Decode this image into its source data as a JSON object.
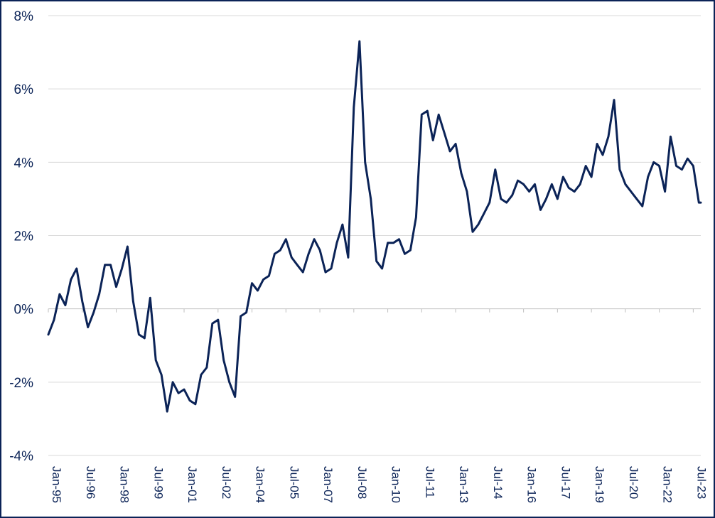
{
  "chart_data": {
    "type": "line",
    "title": "",
    "xlabel": "",
    "ylabel": "",
    "ylim": [
      -4,
      8
    ],
    "y_ticks": [
      "-4%",
      "-2%",
      "0%",
      "2%",
      "4%",
      "6%",
      "8%"
    ],
    "y_tick_values": [
      -4,
      -2,
      0,
      2,
      4,
      6,
      8
    ],
    "x_ticks": [
      "Jan-95",
      "Jul-96",
      "Jan-98",
      "Jul-99",
      "Jan-01",
      "Jul-02",
      "Jan-04",
      "Jul-05",
      "Jan-07",
      "Jul-08",
      "Jan-10",
      "Jul-11",
      "Jan-13",
      "Jul-14",
      "Jan-16",
      "Jul-17",
      "Jan-19",
      "Jul-20",
      "Jan-22",
      "Jul-23"
    ],
    "x_range": [
      "1995-01",
      "2023-11"
    ],
    "grid": "horizontal",
    "legend": "none",
    "colors": {
      "line": "#0b2357",
      "text": "#0b2357",
      "grid": "#d9d9d9"
    },
    "series": [
      {
        "x": [
          "1995-01",
          "1995-04",
          "1995-07",
          "1995-10",
          "1996-01",
          "1996-04",
          "1996-07",
          "1996-10",
          "1997-01",
          "1997-04",
          "1997-07",
          "1997-10",
          "1998-01",
          "1998-04",
          "1998-07",
          "1998-10",
          "1999-01",
          "1999-04",
          "1999-07",
          "1999-10",
          "2000-01",
          "2000-04",
          "2000-07",
          "2000-10",
          "2001-01",
          "2001-04",
          "2001-07",
          "2001-10",
          "2002-01",
          "2002-04",
          "2002-07",
          "2002-10",
          "2003-01",
          "2003-04",
          "2003-07",
          "2003-10",
          "2004-01",
          "2004-04",
          "2004-07",
          "2004-10",
          "2005-01",
          "2005-04",
          "2005-07",
          "2005-10",
          "2006-01",
          "2006-04",
          "2006-07",
          "2006-10",
          "2007-01",
          "2007-04",
          "2007-07",
          "2007-10",
          "2008-01",
          "2008-04",
          "2008-07",
          "2008-10",
          "2009-01",
          "2009-04",
          "2009-07",
          "2009-10",
          "2010-01",
          "2010-04",
          "2010-07",
          "2010-10",
          "2011-01",
          "2011-04",
          "2011-07",
          "2011-10",
          "2012-01",
          "2012-04",
          "2012-07",
          "2012-10",
          "2013-01",
          "2013-04",
          "2013-07",
          "2013-10",
          "2014-01",
          "2014-04",
          "2014-07",
          "2014-10",
          "2015-01",
          "2015-04",
          "2015-07",
          "2015-10",
          "2016-01",
          "2016-04",
          "2016-07",
          "2016-10",
          "2017-01",
          "2017-04",
          "2017-07",
          "2017-10",
          "2018-01",
          "2018-04",
          "2018-07",
          "2018-10",
          "2019-01",
          "2019-04",
          "2019-07",
          "2019-10",
          "2020-01",
          "2020-04",
          "2020-07",
          "2020-10",
          "2021-01",
          "2021-04",
          "2021-07",
          "2021-10",
          "2022-01",
          "2022-04",
          "2022-07",
          "2022-10",
          "2023-01",
          "2023-04",
          "2023-07",
          "2023-10",
          "2023-11"
        ],
        "values": [
          -0.7,
          -0.3,
          0.4,
          0.1,
          0.8,
          1.1,
          0.2,
          -0.5,
          -0.1,
          0.4,
          1.2,
          1.2,
          0.6,
          1.1,
          1.7,
          0.2,
          -0.7,
          -0.8,
          0.3,
          -1.4,
          -1.8,
          -2.8,
          -2.0,
          -2.3,
          -2.2,
          -2.5,
          -2.6,
          -1.8,
          -1.6,
          -0.4,
          -0.3,
          -1.4,
          -2.0,
          -2.4,
          -0.2,
          -0.1,
          0.7,
          0.5,
          0.8,
          0.9,
          1.5,
          1.6,
          1.9,
          1.4,
          1.2,
          1.0,
          1.5,
          1.9,
          1.6,
          1.0,
          1.1,
          1.8,
          2.3,
          1.4,
          5.5,
          7.3,
          4.0,
          3.0,
          1.3,
          1.1,
          1.8,
          1.8,
          1.9,
          1.5,
          1.6,
          2.5,
          5.3,
          5.4,
          4.6,
          5.3,
          4.8,
          4.3,
          4.5,
          3.7,
          3.2,
          2.1,
          2.3,
          2.6,
          2.9,
          3.8,
          3.0,
          2.9,
          3.1,
          3.5,
          3.4,
          3.2,
          3.4,
          2.7,
          3.0,
          3.4,
          3.0,
          3.6,
          3.3,
          3.2,
          3.4,
          3.9,
          3.6,
          4.5,
          4.2,
          4.7,
          5.7,
          3.8,
          3.4,
          3.2,
          3.0,
          2.8,
          3.6,
          4.0,
          3.9,
          3.2,
          4.7,
          3.9,
          3.8,
          4.1,
          3.9,
          2.9,
          2.9
        ]
      }
    ]
  }
}
